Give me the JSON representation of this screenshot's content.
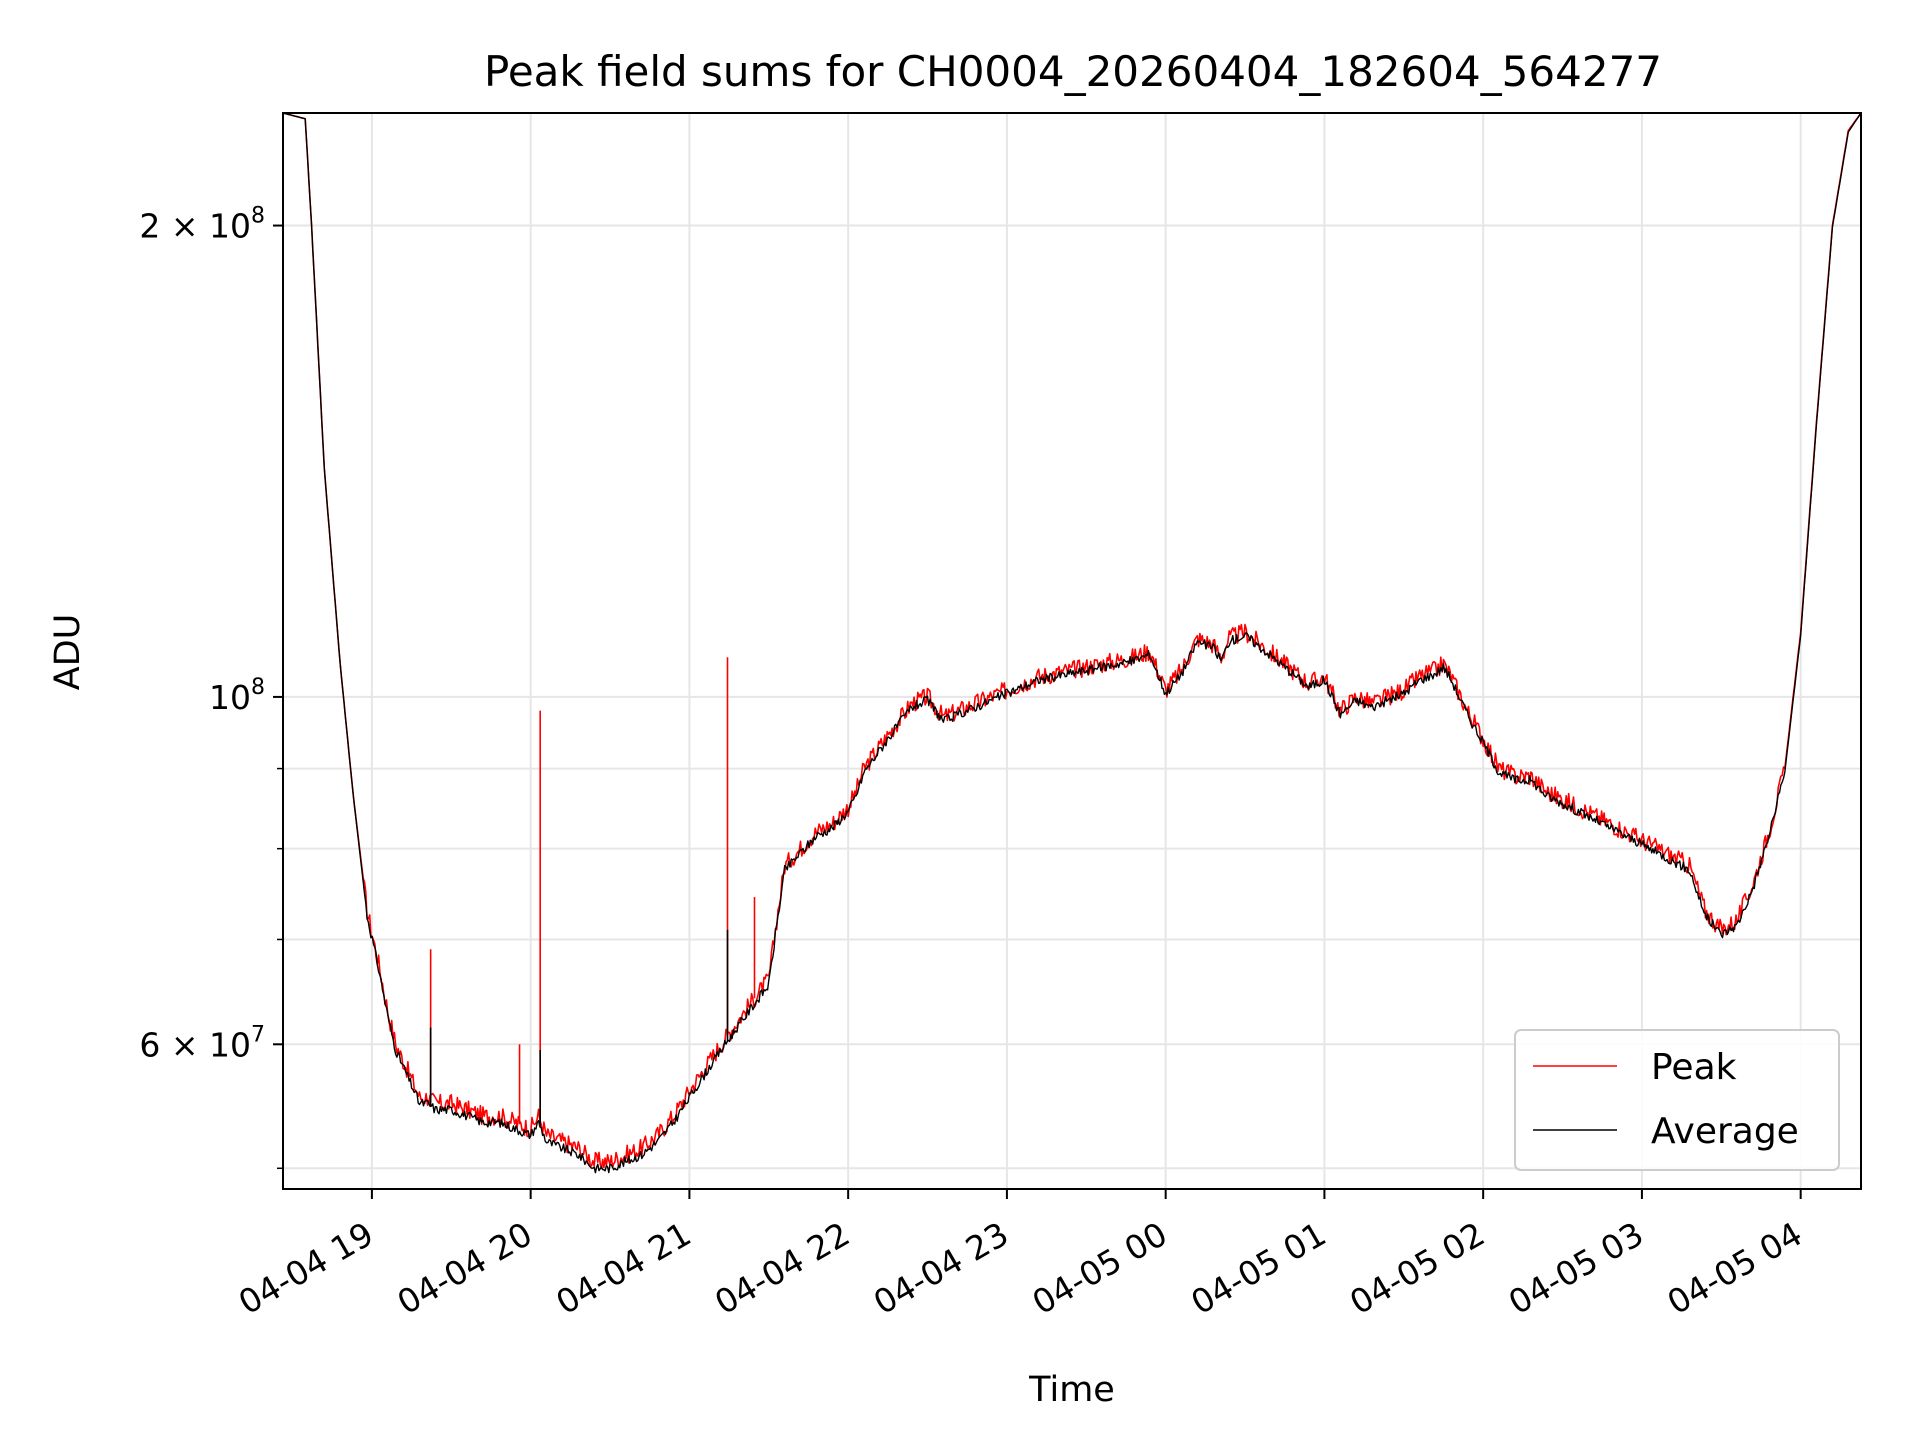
{
  "chart_data": {
    "type": "line",
    "title": "Peak field sums for CH0004_20260404_182604_564277",
    "xlabel": "Time",
    "ylabel": "ADU",
    "yscale": "log",
    "xlim_hours": [
      18.44,
      28.38
    ],
    "ylim": [
      48500000,
      236000000
    ],
    "grid": true,
    "legend_position": "lower-right",
    "x_ticks": [
      {
        "label": "04-04 19",
        "hour": 19
      },
      {
        "label": "04-04 20",
        "hour": 20
      },
      {
        "label": "04-04 21",
        "hour": 21
      },
      {
        "label": "04-04 22",
        "hour": 22
      },
      {
        "label": "04-04 23",
        "hour": 23
      },
      {
        "label": "04-05 00",
        "hour": 24
      },
      {
        "label": "04-05 01",
        "hour": 25
      },
      {
        "label": "04-05 02",
        "hour": 26
      },
      {
        "label": "04-05 03",
        "hour": 27
      },
      {
        "label": "04-05 04",
        "hour": 28
      }
    ],
    "y_major_ticks": [
      {
        "value": 60000000,
        "mantissa": "6",
        "base": "10",
        "exp": "7",
        "times": "×"
      },
      {
        "value": 100000000,
        "mantissa": "",
        "base": "10",
        "exp": "8",
        "times": ""
      },
      {
        "value": 200000000,
        "mantissa": "2",
        "base": "10",
        "exp": "8",
        "times": "×"
      }
    ],
    "y_minor_values": [
      50000000,
      70000000,
      80000000,
      90000000
    ],
    "series": [
      {
        "name": "Peak",
        "color": "#ff0000",
        "x_hours": [
          18.44,
          18.58,
          18.62,
          18.7,
          18.8,
          18.88,
          18.97,
          19.05,
          19.1,
          19.15,
          19.25,
          19.3,
          19.35,
          19.4,
          19.5,
          19.6,
          19.7,
          19.8,
          19.9,
          20.0,
          20.05,
          20.1,
          20.2,
          20.3,
          20.4,
          20.5,
          20.6,
          20.7,
          20.8,
          20.9,
          21.0,
          21.1,
          21.2,
          21.3,
          21.4,
          21.5,
          21.55,
          21.6,
          21.7,
          21.8,
          21.9,
          22.0,
          22.05,
          22.1,
          22.2,
          22.3,
          22.4,
          22.5,
          22.6,
          22.7,
          22.8,
          23.0,
          23.2,
          23.4,
          23.6,
          23.8,
          23.9,
          24.0,
          24.1,
          24.2,
          24.3,
          24.35,
          24.4,
          24.5,
          24.6,
          24.7,
          24.8,
          24.9,
          25.0,
          25.1,
          25.2,
          25.3,
          25.4,
          25.5,
          25.6,
          25.7,
          25.75,
          25.8,
          25.9,
          26.0,
          26.1,
          26.2,
          26.3,
          26.4,
          26.5,
          26.6,
          26.7,
          26.8,
          26.9,
          27.0,
          27.1,
          27.2,
          27.3,
          27.4,
          27.5,
          27.6,
          27.7,
          27.8,
          27.9,
          28.0,
          28.1,
          28.2,
          28.3,
          28.38
        ],
        "values": [
          236000000,
          234000000,
          200000000,
          140000000,
          105000000,
          87000000,
          73000000,
          67000000,
          63000000,
          60000000,
          57000000,
          55500000,
          55500000,
          55000000,
          55000000,
          54500000,
          54000000,
          54000000,
          53500000,
          53000000,
          54000000,
          52500000,
          52000000,
          51500000,
          50500000,
          50500000,
          51000000,
          51500000,
          52500000,
          54000000,
          56000000,
          58000000,
          60000000,
          62000000,
          64000000,
          66000000,
          72000000,
          78000000,
          80000000,
          82000000,
          83000000,
          85000000,
          87000000,
          90000000,
          93000000,
          96000000,
          99000000,
          100000000,
          97000000,
          98000000,
          99000000,
          101000000,
          103000000,
          104000000,
          105000000,
          106000000,
          107000000,
          101000000,
          104000000,
          109000000,
          108000000,
          106000000,
          109000000,
          110000000,
          108000000,
          106000000,
          104000000,
          102000000,
          103000000,
          98000000,
          100000000,
          99000000,
          100000000,
          101000000,
          103000000,
          104000000,
          105000000,
          103000000,
          98000000,
          94000000,
          90000000,
          89000000,
          89000000,
          87000000,
          86000000,
          85000000,
          84000000,
          83000000,
          82000000,
          81000000,
          80000000,
          79000000,
          78000000,
          73000000,
          71000000,
          72000000,
          76000000,
          82000000,
          90000000,
          110000000,
          150000000,
          200000000,
          230000000,
          236000000
        ]
      },
      {
        "name": "Average",
        "color": "#000000",
        "x_hours": [
          18.44,
          18.58,
          18.62,
          18.7,
          18.8,
          18.88,
          18.97,
          19.05,
          19.1,
          19.15,
          19.25,
          19.3,
          19.35,
          19.4,
          19.5,
          19.6,
          19.7,
          19.8,
          19.9,
          20.0,
          20.05,
          20.1,
          20.2,
          20.3,
          20.4,
          20.5,
          20.6,
          20.7,
          20.8,
          20.9,
          21.0,
          21.1,
          21.2,
          21.3,
          21.4,
          21.5,
          21.55,
          21.6,
          21.7,
          21.8,
          21.9,
          22.0,
          22.05,
          22.1,
          22.2,
          22.3,
          22.4,
          22.5,
          22.6,
          22.7,
          22.8,
          23.0,
          23.2,
          23.4,
          23.6,
          23.8,
          23.9,
          24.0,
          24.1,
          24.2,
          24.3,
          24.35,
          24.4,
          24.5,
          24.6,
          24.7,
          24.8,
          24.9,
          25.0,
          25.1,
          25.2,
          25.3,
          25.4,
          25.5,
          25.6,
          25.7,
          25.75,
          25.8,
          25.9,
          26.0,
          26.1,
          26.2,
          26.3,
          26.4,
          26.5,
          26.6,
          26.7,
          26.8,
          26.9,
          27.0,
          27.1,
          27.2,
          27.3,
          27.4,
          27.5,
          27.6,
          27.7,
          27.8,
          27.9,
          28.0,
          28.1,
          28.2,
          28.3,
          28.38
        ],
        "values": [
          236000000,
          234000000,
          200000000,
          140000000,
          105000000,
          87000000,
          72500000,
          66500000,
          62500000,
          59500000,
          56500000,
          55000000,
          55000000,
          54500000,
          54500000,
          54000000,
          53500000,
          53500000,
          53000000,
          52500000,
          53500000,
          52000000,
          51500000,
          51000000,
          50000000,
          50000000,
          50500000,
          51000000,
          52000000,
          53500000,
          55500000,
          57500000,
          59500000,
          61500000,
          63500000,
          65500000,
          71500000,
          77500000,
          79500000,
          81500000,
          82500000,
          84500000,
          86500000,
          89500000,
          92500000,
          95500000,
          98500000,
          99500000,
          96500000,
          97500000,
          98500000,
          100500000,
          102500000,
          103500000,
          104500000,
          105500000,
          106500000,
          100500000,
          103500000,
          108500000,
          107500000,
          105500000,
          108500000,
          109500000,
          107500000,
          105500000,
          103500000,
          101500000,
          102500000,
          97500000,
          99500000,
          98500000,
          99500000,
          100500000,
          102500000,
          103500000,
          104500000,
          102500000,
          97500000,
          93500000,
          89500000,
          88500000,
          88500000,
          86500000,
          85500000,
          84500000,
          83500000,
          82500000,
          81500000,
          80500000,
          79500000,
          78500000,
          77500000,
          72500000,
          70500000,
          71500000,
          75500000,
          81500000,
          89500000,
          109500000,
          149500000,
          199500000,
          229500000,
          236000000
        ]
      }
    ],
    "spikes": [
      {
        "series": "Peak",
        "hour": 19.37,
        "value": 69000000
      },
      {
        "series": "Peak",
        "hour": 19.93,
        "value": 60000000
      },
      {
        "series": "Peak",
        "hour": 20.06,
        "value": 98000000
      },
      {
        "series": "Peak",
        "hour": 21.24,
        "value": 106000000
      },
      {
        "series": "Peak",
        "hour": 21.41,
        "value": 74500000
      },
      {
        "series": "Average",
        "hour": 19.37,
        "value": 61500000
      },
      {
        "series": "Average",
        "hour": 20.06,
        "value": 59500000
      },
      {
        "series": "Average",
        "hour": 21.24,
        "value": 71000000
      }
    ]
  }
}
